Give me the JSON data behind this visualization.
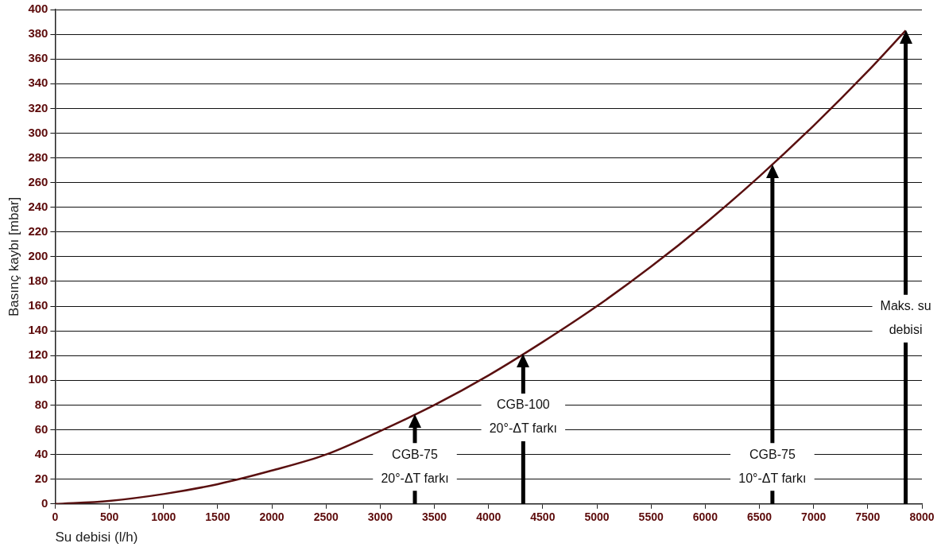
{
  "chart_data": {
    "type": "line",
    "xlabel": "Su debisi (l/h)",
    "ylabel": "Basınç kaybı [mbar]",
    "x": [
      0,
      500,
      1000,
      1500,
      2000,
      2500,
      3000,
      3500,
      4000,
      4500,
      5000,
      5500,
      6000,
      6500,
      7000,
      7500,
      7850
    ],
    "series": [
      {
        "color": "#5a1010",
        "values": [
          0,
          2.5,
          8,
          16,
          27,
          40,
          59,
          80,
          104,
          131,
          160,
          192,
          227,
          265,
          306,
          350,
          383
        ]
      }
    ],
    "xlim": [
      0,
      8000
    ],
    "xticks": [
      0,
      500,
      1000,
      1500,
      2000,
      2500,
      3000,
      3500,
      4000,
      4500,
      5000,
      5500,
      6000,
      6500,
      7000,
      7500,
      8000
    ],
    "ylim": [
      0,
      400
    ],
    "yticks": [
      0,
      20,
      40,
      60,
      80,
      100,
      120,
      140,
      160,
      180,
      200,
      220,
      240,
      260,
      280,
      300,
      320,
      340,
      360,
      380,
      400
    ],
    "grid": "y",
    "legend": false,
    "marker": "none",
    "line_style": "solid",
    "ref_lines": [
      {
        "axis": "x",
        "value": 3320,
        "label": "CGB-75\n20°-ΔT farkı",
        "color": "#000000"
      },
      {
        "axis": "x",
        "value": 4320,
        "label": "CGB-100\n20°-ΔT farkı",
        "color": "#000000"
      },
      {
        "axis": "x",
        "value": 6620,
        "label": "CGB-75\n10°-ΔT farkı",
        "color": "#000000"
      },
      {
        "axis": "x",
        "value": 7850,
        "label": "Maks. su\ndebisi",
        "color": "#000000"
      }
    ]
  }
}
